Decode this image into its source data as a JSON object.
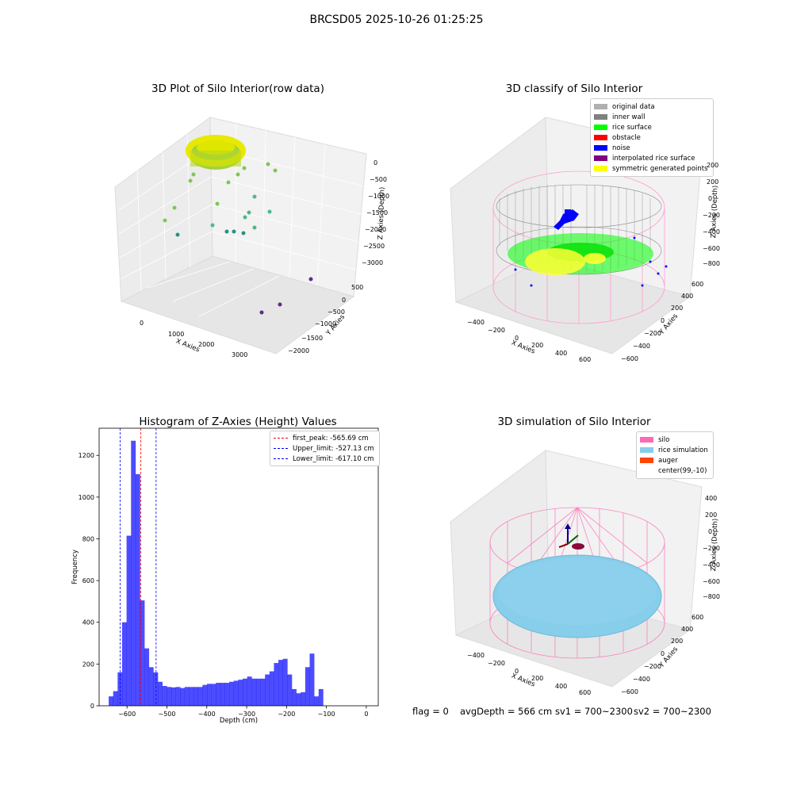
{
  "suptitle": "BRCSD05 2025-10-26 01:25:25",
  "panels": {
    "p1": {
      "title": "3D Plot of Silo Interior(row data)",
      "xlabel": "X Axies",
      "ylabel": "Y Axies",
      "zlabel": "Z Axies (Depth)",
      "xticks": [
        "0",
        "1000",
        "2000",
        "3000"
      ],
      "yticks": [
        "500",
        "0",
        "−500",
        "−1000",
        "−1500",
        "−2000"
      ],
      "zticks": [
        "0",
        "−500",
        "−1000",
        "−1500",
        "−2000",
        "−2500",
        "−3000"
      ]
    },
    "p2": {
      "title": "3D classify of Silo Interior",
      "xlabel": "X Axies",
      "ylabel": "Y Axies",
      "zlabel": "Z Axies (Depth)",
      "xticks": [
        "−400",
        "−200",
        "0",
        "200",
        "400",
        "600"
      ],
      "yticks": [
        "600",
        "400",
        "200",
        "0",
        "−200",
        "−400",
        "−600"
      ],
      "zticks": [
        "200",
        "0",
        "−200",
        "−400",
        "−600",
        "−800"
      ],
      "legend": [
        {
          "label": "original data",
          "color": "#b0b0b0"
        },
        {
          "label": "inner wall",
          "color": "#808080"
        },
        {
          "label": "rice surface",
          "color": "#00ff00"
        },
        {
          "label": "obstacle",
          "color": "#ff0000"
        },
        {
          "label": "noise",
          "color": "#0000ff"
        },
        {
          "label": "interpolated rice surface",
          "color": "#800080"
        },
        {
          "label": "symmetric generated points",
          "color": "#ffff00"
        }
      ]
    },
    "p4": {
      "title": "3D simulation of Silo Interior",
      "xlabel": "X Axies",
      "ylabel": "Y Axies",
      "zlabel": "Z Axies (Depth)",
      "xticks": [
        "−400",
        "−200",
        "0",
        "200",
        "400",
        "600"
      ],
      "yticks": [
        "600",
        "400",
        "200",
        "0",
        "−200",
        "−400",
        "−600"
      ],
      "zticks": [
        "400",
        "200",
        "0",
        "−200",
        "−400",
        "−600",
        "−800"
      ],
      "legend": [
        {
          "label": "silo",
          "color": "#ff69b4"
        },
        {
          "label": "rice simulation",
          "color": "#87ceeb"
        },
        {
          "label": "auger",
          "color": "#ff4500"
        },
        {
          "label": "center(99,-10)",
          "color": "#ffffff"
        }
      ]
    }
  },
  "footer": {
    "flag": "flag = 0",
    "avg": "avgDepth = 566 cm",
    "sv1": "sv1 = 700~2300",
    "sv2": "sv2 = 700~2300"
  },
  "chart_data": [
    {
      "type": "bar",
      "title": "Histogram of Z-Axies (Height) Values",
      "xlabel": "Depth (cm)",
      "ylabel": "Frequency",
      "xlim": [
        -670,
        30
      ],
      "ylim": [
        0,
        1330
      ],
      "xticks": [
        -600,
        -500,
        -400,
        -300,
        -200,
        -100,
        0
      ],
      "yticks": [
        0,
        200,
        400,
        600,
        800,
        1000,
        1200
      ],
      "bin_width": 11.2,
      "bin_start": -646,
      "values": [
        45,
        70,
        160,
        400,
        815,
        1270,
        1110,
        505,
        275,
        185,
        160,
        115,
        95,
        90,
        88,
        90,
        85,
        90,
        90,
        90,
        90,
        100,
        105,
        105,
        110,
        110,
        110,
        115,
        120,
        125,
        130,
        140,
        130,
        130,
        130,
        150,
        165,
        205,
        220,
        225,
        150,
        80,
        60,
        65,
        185,
        250,
        45,
        80
      ],
      "color": "#0000ff",
      "lines": [
        {
          "x": -565.69,
          "label": "first_peak: -565.69 cm",
          "color": "#ff0000"
        },
        {
          "x": -527.13,
          "label": "Upper_limit: -527.13 cm",
          "color": "#0000ff"
        },
        {
          "x": -617.1,
          "label": "Lower_limit: -617.10 cm",
          "color": "#0000ff"
        }
      ],
      "legend_position": "upper right"
    }
  ]
}
